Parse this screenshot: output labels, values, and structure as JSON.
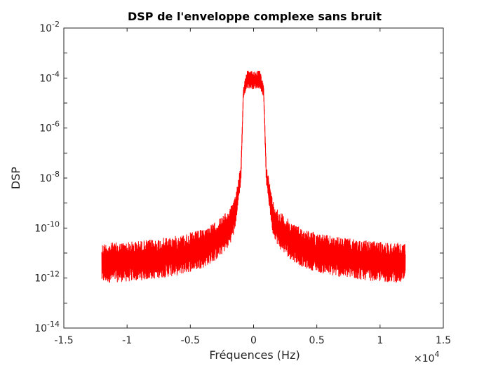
{
  "chart_data": {
    "type": "line",
    "title": "DSP de l'enveloppe complexe sans bruit",
    "xlabel": "Fréquences (Hz)",
    "ylabel": "DSP",
    "x_exponent_label": "×10",
    "x_exponent_power": "4",
    "x_scale_factor": 10000,
    "xlim": [
      -1.5,
      1.5
    ],
    "ylim_log10": [
      -14,
      -2
    ],
    "y_scale": "log",
    "grid": false,
    "x_ticks": [
      {
        "value": -1.5,
        "label": "-1.5"
      },
      {
        "value": -1,
        "label": "-1"
      },
      {
        "value": -0.5,
        "label": "-0.5"
      },
      {
        "value": 0,
        "label": "0"
      },
      {
        "value": 0.5,
        "label": "0.5"
      },
      {
        "value": 1,
        "label": "1"
      },
      {
        "value": 1.5,
        "label": "1.5"
      }
    ],
    "y_ticks": [
      {
        "exp": -2,
        "base": "10",
        "power": "-2"
      },
      {
        "exp": -4,
        "base": "10",
        "power": "-4"
      },
      {
        "exp": -6,
        "base": "10",
        "power": "-6"
      },
      {
        "exp": -8,
        "base": "10",
        "power": "-8"
      },
      {
        "exp": -10,
        "base": "10",
        "power": "-10"
      },
      {
        "exp": -12,
        "base": "10",
        "power": "-12"
      },
      {
        "exp": -14,
        "base": "10",
        "power": "-14"
      }
    ],
    "series": [
      {
        "color": "#ff0000",
        "x_range": [
          -1.2,
          1.2
        ],
        "envelope": [
          {
            "x": -1.2,
            "upper": -10.6,
            "lower": -12.2
          },
          {
            "x": -1.0,
            "upper": -10.55,
            "lower": -12.15
          },
          {
            "x": -0.8,
            "upper": -10.45,
            "lower": -12.05
          },
          {
            "x": -0.6,
            "upper": -10.3,
            "lower": -11.9
          },
          {
            "x": -0.4,
            "upper": -10.05,
            "lower": -11.6
          },
          {
            "x": -0.3,
            "upper": -9.75,
            "lower": -11.3
          },
          {
            "x": -0.2,
            "upper": -9.3,
            "lower": -10.8
          },
          {
            "x": -0.15,
            "upper": -8.85,
            "lower": -10.2
          },
          {
            "x": -0.1,
            "upper": -7.4,
            "lower": -8.2
          },
          {
            "x": -0.08,
            "upper": -4.3,
            "lower": -4.8
          },
          {
            "x": -0.05,
            "upper": -3.7,
            "lower": -4.4
          },
          {
            "x": 0.0,
            "upper": -3.7,
            "lower": -4.45
          },
          {
            "x": 0.05,
            "upper": -3.7,
            "lower": -4.4
          },
          {
            "x": 0.08,
            "upper": -4.3,
            "lower": -4.8
          },
          {
            "x": 0.1,
            "upper": -7.4,
            "lower": -8.2
          },
          {
            "x": 0.15,
            "upper": -8.85,
            "lower": -10.2
          },
          {
            "x": 0.2,
            "upper": -9.3,
            "lower": -10.8
          },
          {
            "x": 0.3,
            "upper": -9.75,
            "lower": -11.3
          },
          {
            "x": 0.4,
            "upper": -10.05,
            "lower": -11.6
          },
          {
            "x": 0.6,
            "upper": -10.3,
            "lower": -11.9
          },
          {
            "x": 0.8,
            "upper": -10.45,
            "lower": -12.05
          },
          {
            "x": 1.0,
            "upper": -10.55,
            "lower": -12.15
          },
          {
            "x": 1.2,
            "upper": -10.6,
            "lower": -12.2
          }
        ]
      }
    ]
  }
}
